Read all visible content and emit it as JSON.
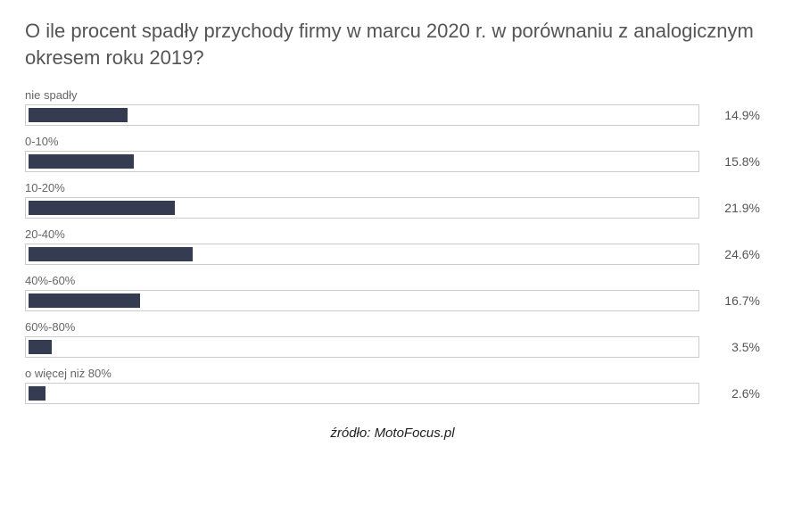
{
  "title": "O ile procent spadły przychody firmy w marcu 2020 r. w porównaniu z analogicznym okresem roku 2019?",
  "chart": {
    "type": "bar",
    "bar_color": "#353b50",
    "track_background": "#ffffff",
    "track_border_color": "#cccccc",
    "title_fontsize": 22,
    "title_color": "#555555",
    "label_fontsize": 13,
    "label_color": "#666666",
    "value_fontsize": 14,
    "value_color": "#555555",
    "max_value": 100,
    "rows": [
      {
        "label": "nie spadły",
        "value": 14.9,
        "display": "14.9%"
      },
      {
        "label": "0-10%",
        "value": 15.8,
        "display": "15.8%"
      },
      {
        "label": "10-20%",
        "value": 21.9,
        "display": "21.9%"
      },
      {
        "label": "20-40%",
        "value": 24.6,
        "display": "24.6%"
      },
      {
        "label": "40%-60%",
        "value": 16.7,
        "display": "16.7%"
      },
      {
        "label": "60%-80%",
        "value": 3.5,
        "display": "3.5%"
      },
      {
        "label": "o więcej niż 80%",
        "value": 2.6,
        "display": "2.6%"
      }
    ]
  },
  "source": "źródło: MotoFocus.pl"
}
